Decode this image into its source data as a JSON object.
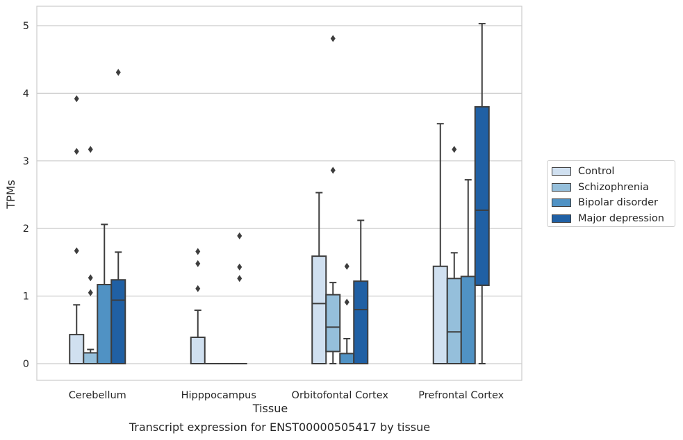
{
  "caption": "Transcript expression for ENST00000505417 by tissue",
  "chart_data": {
    "type": "boxplot",
    "xlabel": "Tissue",
    "ylabel": "TPMs",
    "ylim": [
      -0.25,
      5.28
    ],
    "yticks": [
      0,
      1,
      2,
      3,
      4,
      5
    ],
    "grid": true,
    "legend_position": "right",
    "categories": [
      "Cerebellum",
      "Hipppocampus",
      "Orbitofontal Cortex",
      "Prefrontal Cortex"
    ],
    "series": [
      {
        "name": "Control",
        "color": "#d0e0f0",
        "boxes": [
          {
            "whislo": 0,
            "q1": 0,
            "med": 0,
            "q3": 0.43,
            "whishi": 0.87,
            "fliers": [
              1.67,
              3.14,
              3.92
            ]
          },
          {
            "whislo": 0,
            "q1": 0,
            "med": 0,
            "q3": 0.39,
            "whishi": 0.79,
            "fliers": [
              1.11,
              1.48,
              1.66
            ]
          },
          {
            "whislo": 0,
            "q1": 0,
            "med": 0.89,
            "q3": 1.59,
            "whishi": 2.53,
            "fliers": []
          },
          {
            "whislo": 0,
            "q1": 0,
            "med": 0,
            "q3": 1.44,
            "whishi": 3.55,
            "fliers": []
          }
        ]
      },
      {
        "name": "Schizophrenia",
        "color": "#95bfdb",
        "boxes": [
          {
            "whislo": 0,
            "q1": 0,
            "med": 0,
            "q3": 0.16,
            "whishi": 0.21,
            "fliers": [
              1.05,
              1.27,
              3.17
            ]
          },
          {
            "whislo": 0,
            "q1": 0,
            "med": 0,
            "q3": 0,
            "whishi": 0,
            "fliers": []
          },
          {
            "whislo": 0,
            "q1": 0.18,
            "med": 0.54,
            "q3": 1.02,
            "whishi": 1.2,
            "fliers": [
              2.86,
              4.81
            ]
          },
          {
            "whislo": 0,
            "q1": 0,
            "med": 0.47,
            "q3": 1.26,
            "whishi": 1.64,
            "fliers": [
              3.17
            ]
          }
        ]
      },
      {
        "name": "Bipolar disorder",
        "color": "#5092c4",
        "boxes": [
          {
            "whislo": 0,
            "q1": 0,
            "med": 0,
            "q3": 1.17,
            "whishi": 2.06,
            "fliers": []
          },
          {
            "whislo": 0,
            "q1": 0,
            "med": 0,
            "q3": 0,
            "whishi": 0,
            "fliers": []
          },
          {
            "whislo": 0,
            "q1": 0,
            "med": 0,
            "q3": 0.15,
            "whishi": 0.37,
            "fliers": [
              0.91,
              1.44
            ]
          },
          {
            "whislo": 0,
            "q1": 0,
            "med": 0,
            "q3": 1.29,
            "whishi": 2.72,
            "fliers": []
          }
        ]
      },
      {
        "name": "Major depression",
        "color": "#2060a4",
        "boxes": [
          {
            "whislo": 0,
            "q1": 0,
            "med": 0.94,
            "q3": 1.24,
            "whishi": 1.65,
            "fliers": [
              4.31
            ]
          },
          {
            "whislo": 0,
            "q1": 0,
            "med": 0,
            "q3": 0,
            "whishi": 0,
            "fliers": [
              1.26,
              1.43,
              1.89
            ]
          },
          {
            "whislo": 0,
            "q1": 0,
            "med": 0.8,
            "q3": 1.22,
            "whishi": 2.12,
            "fliers": []
          },
          {
            "whislo": 0,
            "q1": 1.16,
            "med": 2.27,
            "q3": 3.8,
            "whishi": 5.03,
            "fliers": []
          }
        ]
      }
    ]
  }
}
